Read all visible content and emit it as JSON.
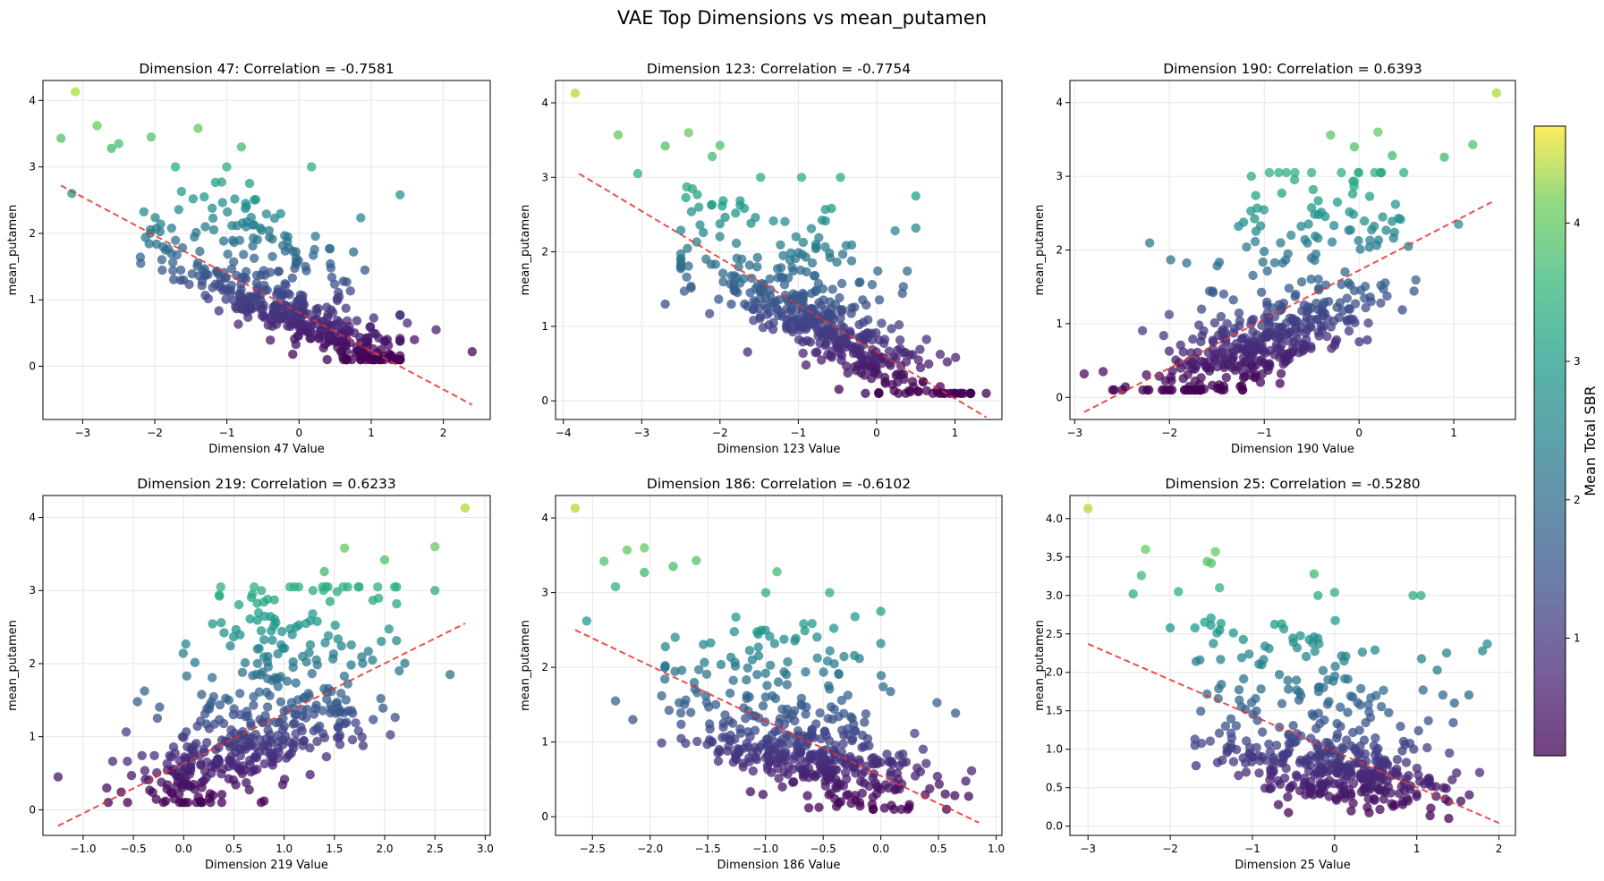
{
  "figure": {
    "title": "VAE Top Dimensions vs mean_putamen"
  },
  "colorbar": {
    "label": "Mean Total SBR",
    "ticks": [
      1,
      2,
      3,
      4
    ],
    "vmin": 0.15,
    "vmax": 4.7,
    "colormap": "viridis"
  },
  "colors": {
    "fit_line": "#e8302d",
    "grid": "#e6e6e6"
  },
  "chart_data": [
    {
      "type": "scatter",
      "title": "Dimension 47: Correlation = -0.7581",
      "xlabel": "Dimension 47 Value",
      "ylabel": "mean_putamen",
      "xlim": [
        -3.55,
        2.65
      ],
      "ylim": [
        -0.8,
        4.3
      ],
      "xticks": [
        "-3",
        "-2",
        "-1",
        "0",
        "1",
        "2"
      ],
      "xtickvals": [
        -3,
        -2,
        -1,
        0,
        1,
        2
      ],
      "yticks": [
        "0",
        "1",
        "2",
        "3",
        "4"
      ],
      "ytickvals": [
        0,
        1,
        2,
        3,
        4
      ],
      "correlation": -0.7581,
      "fit": [
        [
          -3.3,
          2.72
        ],
        [
          2.4,
          -0.58
        ]
      ],
      "outliers": [
        [
          -3.1,
          4.13
        ],
        [
          -3.3,
          3.43
        ],
        [
          -2.8,
          3.62
        ],
        [
          -2.6,
          3.28
        ],
        [
          -2.5,
          3.35
        ],
        [
          -2.05,
          3.45
        ],
        [
          -1.4,
          3.58
        ],
        [
          -0.8,
          3.3
        ],
        [
          -3.15,
          2.6
        ],
        [
          2.4,
          0.22
        ],
        [
          1.9,
          0.55
        ],
        [
          1.6,
          0.4
        ],
        [
          1.5,
          0.65
        ]
      ],
      "gen": {
        "mode": "neg",
        "xmin": -2.2,
        "xmax": 1.4,
        "xcenter": 0,
        "xspread": 0.8,
        "slope": -0.5,
        "intercept": 0.72,
        "noise": 0.2,
        "seed": 11
      }
    },
    {
      "type": "scatter",
      "title": "Dimension 123: Correlation = -0.7754",
      "xlabel": "Dimension 123 Value",
      "ylabel": "mean_putamen",
      "xlim": [
        -4.1,
        1.6
      ],
      "ylim": [
        -0.25,
        4.3
      ],
      "xticks": [
        "-4",
        "-3",
        "-2",
        "-1",
        "0",
        "1"
      ],
      "xtickvals": [
        -4,
        -3,
        -2,
        -1,
        0,
        1
      ],
      "yticks": [
        "0",
        "1",
        "2",
        "3",
        "4"
      ],
      "ytickvals": [
        0,
        1,
        2,
        3,
        4
      ],
      "correlation": -0.7754,
      "fit": [
        [
          -3.8,
          3.05
        ],
        [
          1.4,
          -0.22
        ]
      ],
      "outliers": [
        [
          -3.85,
          4.13
        ],
        [
          -3.3,
          3.57
        ],
        [
          -2.7,
          3.42
        ],
        [
          -2.4,
          3.6
        ],
        [
          -2.1,
          3.28
        ],
        [
          -2.0,
          3.43
        ],
        [
          0.5,
          2.75
        ],
        [
          0.5,
          2.32
        ],
        [
          -3.05,
          3.05
        ],
        [
          1.4,
          0.1
        ],
        [
          -2.7,
          1.3
        ]
      ],
      "gen": {
        "mode": "neg",
        "xmin": -2.5,
        "xmax": 1.2,
        "xcenter": -0.6,
        "xspread": 0.8,
        "slope": -0.55,
        "intercept": 0.55,
        "noise": 0.22,
        "seed": 23
      }
    },
    {
      "type": "scatter",
      "title": "Dimension 190: Correlation = 0.6393",
      "xlabel": "Dimension 190 Value",
      "ylabel": "mean_putamen",
      "xlim": [
        -3.05,
        1.65
      ],
      "ylim": [
        -0.3,
        4.3
      ],
      "xticks": [
        "-3",
        "-2",
        "-1",
        "0",
        "1"
      ],
      "xtickvals": [
        -3,
        -2,
        -1,
        0,
        1
      ],
      "yticks": [
        "0",
        "1",
        "2",
        "3",
        "4"
      ],
      "ytickvals": [
        0,
        1,
        2,
        3,
        4
      ],
      "correlation": 0.6393,
      "fit": [
        [
          -2.9,
          -0.2
        ],
        [
          1.4,
          2.65
        ]
      ],
      "outliers": [
        [
          1.45,
          4.13
        ],
        [
          1.2,
          3.43
        ],
        [
          0.9,
          3.26
        ],
        [
          0.2,
          3.6
        ],
        [
          -0.3,
          3.56
        ],
        [
          -0.05,
          3.4
        ],
        [
          0.35,
          3.28
        ],
        [
          1.05,
          2.35
        ],
        [
          -2.9,
          0.32
        ],
        [
          -2.7,
          0.35
        ]
      ],
      "gen": {
        "mode": "pos",
        "xmin": -2.6,
        "xmax": 0.6,
        "xcenter": -1.0,
        "xspread": 0.6,
        "slope": 0.55,
        "intercept": 1.25,
        "noise": 0.26,
        "seed": 37
      }
    },
    {
      "type": "scatter",
      "title": "Dimension 219: Correlation = 0.6233",
      "xlabel": "Dimension 219 Value",
      "ylabel": "mean_putamen",
      "xlim": [
        -1.4,
        3.05
      ],
      "ylim": [
        -0.35,
        4.3
      ],
      "xticks": [
        "-1.0",
        "-0.5",
        "0.0",
        "0.5",
        "1.0",
        "1.5",
        "2.0",
        "2.5",
        "3.0"
      ],
      "xtickvals": [
        -1,
        -0.5,
        0,
        0.5,
        1,
        1.5,
        2,
        2.5,
        3
      ],
      "yticks": [
        "0",
        "1",
        "2",
        "3",
        "4"
      ],
      "ytickvals": [
        0,
        1,
        2,
        3,
        4
      ],
      "correlation": 0.6233,
      "fit": [
        [
          -1.25,
          -0.22
        ],
        [
          2.8,
          2.55
        ]
      ],
      "outliers": [
        [
          2.8,
          4.13
        ],
        [
          2.5,
          3.6
        ],
        [
          2.0,
          3.42
        ],
        [
          1.6,
          3.58
        ],
        [
          1.4,
          3.26
        ],
        [
          2.5,
          3.0
        ],
        [
          2.65,
          1.85
        ],
        [
          -1.25,
          0.45
        ],
        [
          -0.75,
          0.1
        ],
        [
          0.8,
          0.12
        ]
      ],
      "gen": {
        "mode": "pos",
        "xmin": -1.0,
        "xmax": 2.2,
        "xcenter": 0.6,
        "xspread": 0.6,
        "slope": 0.45,
        "intercept": 0.55,
        "noise": 0.3,
        "seed": 41
      }
    },
    {
      "type": "scatter",
      "title": "Dimension 186: Correlation = -0.6102",
      "xlabel": "Dimension 186 Value",
      "ylabel": "mean_putamen",
      "xlim": [
        -2.82,
        1.05
      ],
      "ylim": [
        -0.25,
        4.3
      ],
      "xticks": [
        "-2.5",
        "-2.0",
        "-1.5",
        "-1.0",
        "-0.5",
        "0.0",
        "0.5",
        "1.0"
      ],
      "xtickvals": [
        -2.5,
        -2,
        -1.5,
        -1,
        -0.5,
        0,
        0.5,
        1
      ],
      "yticks": [
        "0",
        "1",
        "2",
        "3",
        "4"
      ],
      "ytickvals": [
        0,
        1,
        2,
        3,
        4
      ],
      "correlation": -0.6102,
      "fit": [
        [
          -2.65,
          2.5
        ],
        [
          0.85,
          -0.08
        ]
      ],
      "outliers": [
        [
          -2.65,
          4.13
        ],
        [
          -2.4,
          3.42
        ],
        [
          -2.3,
          3.08
        ],
        [
          -2.2,
          3.57
        ],
        [
          -2.05,
          3.6
        ],
        [
          -2.05,
          3.27
        ],
        [
          -1.8,
          3.35
        ],
        [
          -1.6,
          3.43
        ],
        [
          -2.55,
          2.62
        ],
        [
          -2.3,
          1.55
        ],
        [
          -2.15,
          1.3
        ],
        [
          0.0,
          2.75
        ],
        [
          0.0,
          2.32
        ],
        [
          -0.9,
          3.28
        ]
      ],
      "gen": {
        "mode": "neg",
        "xmin": -1.9,
        "xmax": 0.9,
        "xcenter": -0.6,
        "xspread": 0.55,
        "slope": -0.4,
        "intercept": 0.52,
        "noise": 0.25,
        "seed": 53
      }
    },
    {
      "type": "scatter",
      "title": "Dimension 25: Correlation = -0.5280",
      "xlabel": "Dimension 25 Value",
      "ylabel": "mean_putamen",
      "xlim": [
        -3.22,
        2.2
      ],
      "ylim": [
        -0.12,
        4.3
      ],
      "xticks": [
        "-3",
        "-2",
        "-1",
        "0",
        "1",
        "2"
      ],
      "xtickvals": [
        -3,
        -2,
        -1,
        0,
        1,
        2
      ],
      "yticks": [
        "0.0",
        "0.5",
        "1.0",
        "1.5",
        "2.0",
        "2.5",
        "3.0",
        "3.5",
        "4.0"
      ],
      "ytickvals": [
        0,
        0.5,
        1,
        1.5,
        2,
        2.5,
        3,
        3.5,
        4
      ],
      "correlation": -0.528,
      "fit": [
        [
          -3.0,
          2.37
        ],
        [
          2.0,
          0.04
        ]
      ],
      "outliers": [
        [
          -3.0,
          4.13
        ],
        [
          -2.3,
          3.6
        ],
        [
          -2.35,
          3.26
        ],
        [
          -2.45,
          3.02
        ],
        [
          -1.9,
          3.05
        ],
        [
          -1.55,
          3.44
        ],
        [
          -1.5,
          3.42
        ],
        [
          -1.45,
          3.57
        ],
        [
          -1.4,
          3.1
        ],
        [
          -0.25,
          3.28
        ],
        [
          0.0,
          3.04
        ],
        [
          1.8,
          2.28
        ],
        [
          -2.0,
          2.58
        ]
      ],
      "gen": {
        "mode": "neg",
        "xmin": -1.7,
        "xmax": 2.0,
        "xcenter": 0.0,
        "xspread": 0.7,
        "slope": -0.18,
        "intercept": 0.7,
        "noise": 0.2,
        "seed": 67
      }
    }
  ]
}
